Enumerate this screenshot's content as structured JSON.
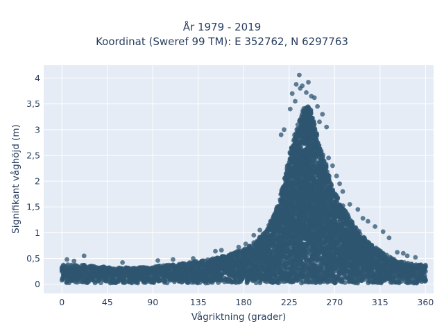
{
  "chart_data": {
    "type": "scatter",
    "title_lines": [
      "År 1979 - 2019",
      "Koordinat (Sweref 99 TM): E 352762, N 6297763"
    ],
    "xlabel": "Vågriktning (grader)",
    "ylabel": "Signifikant våghöjd (m)",
    "xlim": [
      -18,
      368
    ],
    "ylim": [
      -0.18,
      4.25
    ],
    "xticks": [
      0,
      45,
      90,
      135,
      180,
      225,
      270,
      315,
      360
    ],
    "xtick_labels": [
      "0",
      "45",
      "90",
      "135",
      "180",
      "225",
      "270",
      "315",
      "360"
    ],
    "yticks": [
      0,
      0.5,
      1,
      1.5,
      2,
      2.5,
      3,
      3.5,
      4
    ],
    "ytick_labels": [
      "0",
      "0,5",
      "1",
      "1,5",
      "2",
      "2,5",
      "3",
      "3,5",
      "4"
    ],
    "grid": true,
    "colors": {
      "marker": "#2f5670",
      "plot_bg": "#e5ecf6",
      "grid": "#ffffff",
      "text": "#2a3f5f"
    },
    "series": [
      {
        "envelope": [
          [
            0,
            0.38
          ],
          [
            15,
            0.38
          ],
          [
            30,
            0.36
          ],
          [
            45,
            0.33
          ],
          [
            60,
            0.32
          ],
          [
            75,
            0.33
          ],
          [
            90,
            0.34
          ],
          [
            105,
            0.37
          ],
          [
            120,
            0.41
          ],
          [
            135,
            0.45
          ],
          [
            150,
            0.5
          ],
          [
            165,
            0.57
          ],
          [
            180,
            0.68
          ],
          [
            190,
            0.8
          ],
          [
            200,
            0.98
          ],
          [
            205,
            1.15
          ],
          [
            210,
            1.35
          ],
          [
            215,
            1.6
          ],
          [
            220,
            2.05
          ],
          [
            225,
            2.45
          ],
          [
            230,
            2.85
          ],
          [
            235,
            3.2
          ],
          [
            240,
            3.45
          ],
          [
            245,
            3.45
          ],
          [
            250,
            3.1
          ],
          [
            255,
            2.7
          ],
          [
            260,
            2.4
          ],
          [
            265,
            2.05
          ],
          [
            270,
            1.8
          ],
          [
            275,
            1.6
          ],
          [
            280,
            1.45
          ],
          [
            285,
            1.3
          ],
          [
            290,
            1.15
          ],
          [
            295,
            1.0
          ],
          [
            300,
            0.9
          ],
          [
            305,
            0.8
          ],
          [
            310,
            0.72
          ],
          [
            315,
            0.64
          ],
          [
            320,
            0.58
          ],
          [
            325,
            0.52
          ],
          [
            330,
            0.47
          ],
          [
            340,
            0.42
          ],
          [
            350,
            0.38
          ],
          [
            360,
            0.38
          ]
        ],
        "base_min": 0.02,
        "outliers": [
          [
            235,
            4.06
          ],
          [
            232,
            3.88
          ],
          [
            238,
            3.85
          ],
          [
            244,
            3.92
          ],
          [
            236,
            3.8
          ],
          [
            228,
            3.7
          ],
          [
            242,
            3.72
          ],
          [
            250,
            3.62
          ],
          [
            247,
            3.65
          ],
          [
            231,
            3.55
          ],
          [
            253,
            3.45
          ],
          [
            226,
            3.4
          ],
          [
            258,
            3.3
          ],
          [
            255,
            3.15
          ],
          [
            262,
            3.05
          ],
          [
            220,
            3.0
          ],
          [
            217,
            2.9
          ],
          [
            264,
            2.45
          ],
          [
            268,
            2.3
          ],
          [
            272,
            2.1
          ],
          [
            275,
            1.95
          ],
          [
            278,
            1.8
          ],
          [
            285,
            1.55
          ],
          [
            293,
            1.45
          ],
          [
            298,
            1.28
          ],
          [
            303,
            1.22
          ],
          [
            310,
            1.12
          ],
          [
            318,
            1.02
          ],
          [
            324,
            0.9
          ],
          [
            332,
            0.62
          ],
          [
            338,
            0.6
          ],
          [
            342,
            0.55
          ],
          [
            22,
            0.55
          ],
          [
            158,
            0.66
          ],
          [
            152,
            0.64
          ],
          [
            175,
            0.72
          ],
          [
            182,
            0.78
          ],
          [
            190,
            0.95
          ],
          [
            196,
            1.05
          ],
          [
            110,
            0.48
          ],
          [
            95,
            0.46
          ],
          [
            5,
            0.48
          ],
          [
            350,
            0.52
          ],
          [
            12,
            0.45
          ],
          [
            60,
            0.42
          ],
          [
            130,
            0.5
          ]
        ]
      }
    ]
  }
}
